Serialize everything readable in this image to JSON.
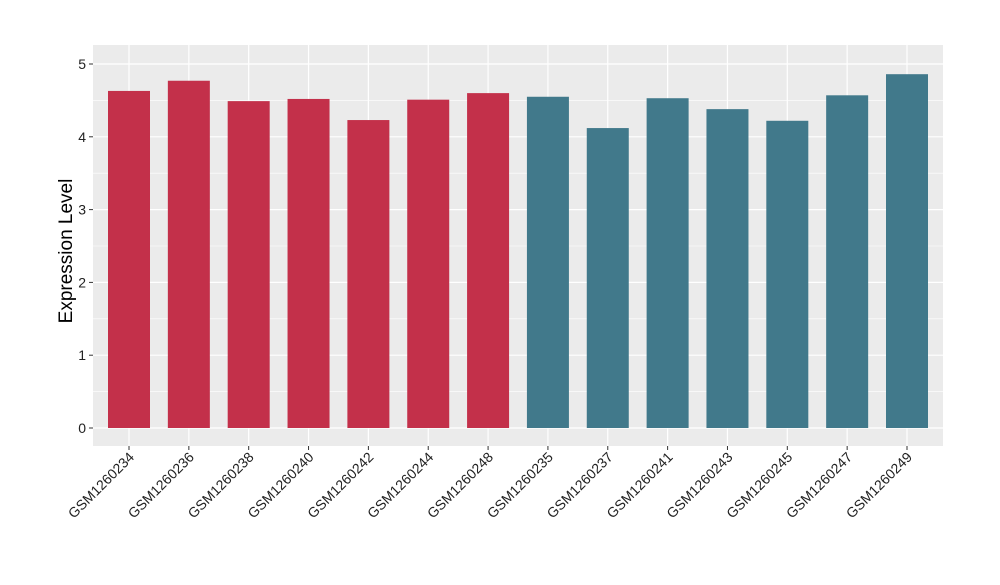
{
  "chart_data": {
    "type": "bar",
    "title": "",
    "xlabel": "",
    "ylabel": "Expression Level",
    "ylim": [
      0,
      5
    ],
    "yticks": [
      0,
      1,
      2,
      3,
      4,
      5
    ],
    "grid": true,
    "categories": [
      "GSM1260234",
      "GSM1260236",
      "GSM1260238",
      "GSM1260240",
      "GSM1260242",
      "GSM1260244",
      "GSM1260248",
      "GSM1260235",
      "GSM1260237",
      "GSM1260241",
      "GSM1260243",
      "GSM1260245",
      "GSM1260247",
      "GSM1260249"
    ],
    "values": [
      4.63,
      4.77,
      4.49,
      4.52,
      4.23,
      4.51,
      4.6,
      4.55,
      4.12,
      4.53,
      4.38,
      4.22,
      4.57,
      4.86
    ],
    "groups": [
      0,
      0,
      0,
      0,
      0,
      0,
      0,
      1,
      1,
      1,
      1,
      1,
      1,
      1
    ],
    "group_colors": [
      "#C3304A",
      "#41798B"
    ],
    "background": "#EBEBEB"
  }
}
